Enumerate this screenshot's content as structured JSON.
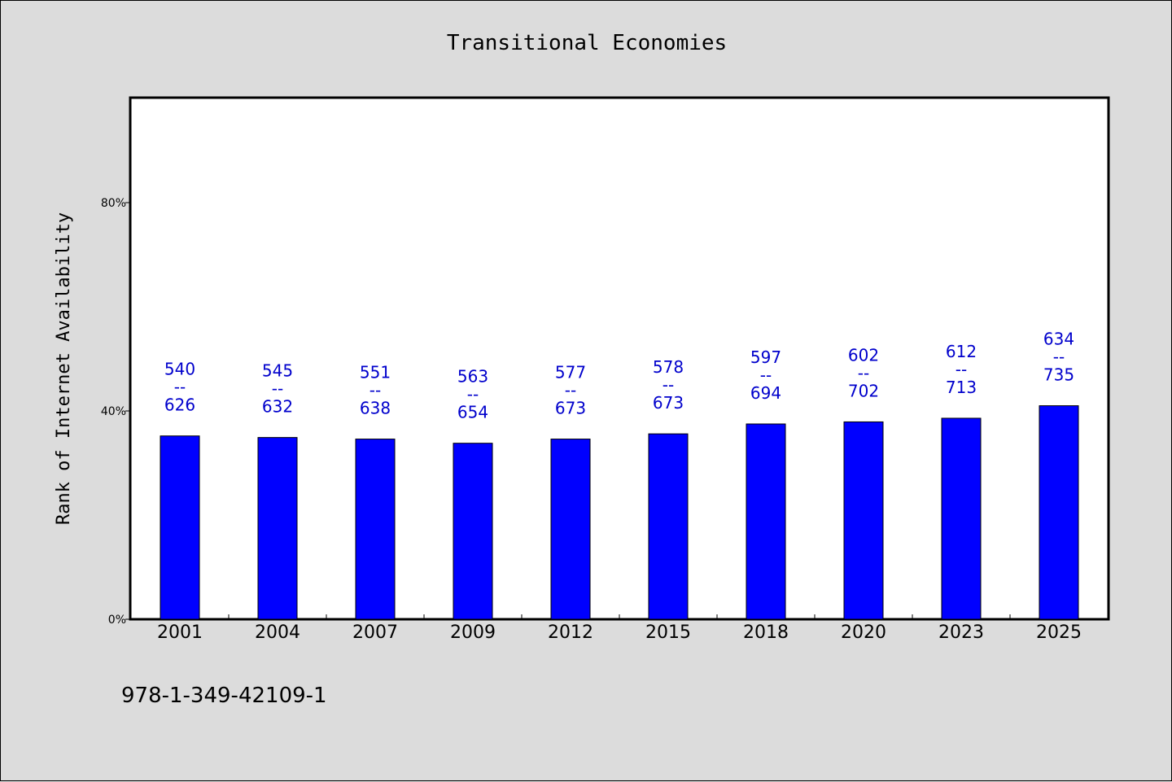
{
  "chart_data": {
    "type": "bar",
    "title": "Transitional Economies",
    "ylabel": "Rank of Internet Availability",
    "xlabel": "",
    "ylim": [
      0,
      100
    ],
    "yticks": [
      {
        "value": 0,
        "label": "0%"
      },
      {
        "value": 40,
        "label": "40%"
      },
      {
        "value": 80,
        "label": "80%"
      }
    ],
    "categories": [
      "2001",
      "2004",
      "2007",
      "2009",
      "2012",
      "2015",
      "2018",
      "2020",
      "2023",
      "2025"
    ],
    "values": [
      35.2,
      34.9,
      34.6,
      33.8,
      34.6,
      35.6,
      37.5,
      37.9,
      38.6,
      41.0
    ],
    "data_labels": [
      {
        "top": "540",
        "sep": "--",
        "bottom": "626"
      },
      {
        "top": "545",
        "sep": "--",
        "bottom": "632"
      },
      {
        "top": "551",
        "sep": "--",
        "bottom": "638"
      },
      {
        "top": "563",
        "sep": "--",
        "bottom": "654"
      },
      {
        "top": "577",
        "sep": "--",
        "bottom": "673"
      },
      {
        "top": "578",
        "sep": "--",
        "bottom": "673"
      },
      {
        "top": "597",
        "sep": "--",
        "bottom": "694"
      },
      {
        "top": "602",
        "sep": "--",
        "bottom": "702"
      },
      {
        "top": "612",
        "sep": "--",
        "bottom": "713"
      },
      {
        "top": "634",
        "sep": "--",
        "bottom": "735"
      }
    ],
    "bar_color": "#0000ff",
    "label_color": "#0000cc",
    "grid": false,
    "legend": "none"
  },
  "footnote": "978-1-349-42109-1"
}
